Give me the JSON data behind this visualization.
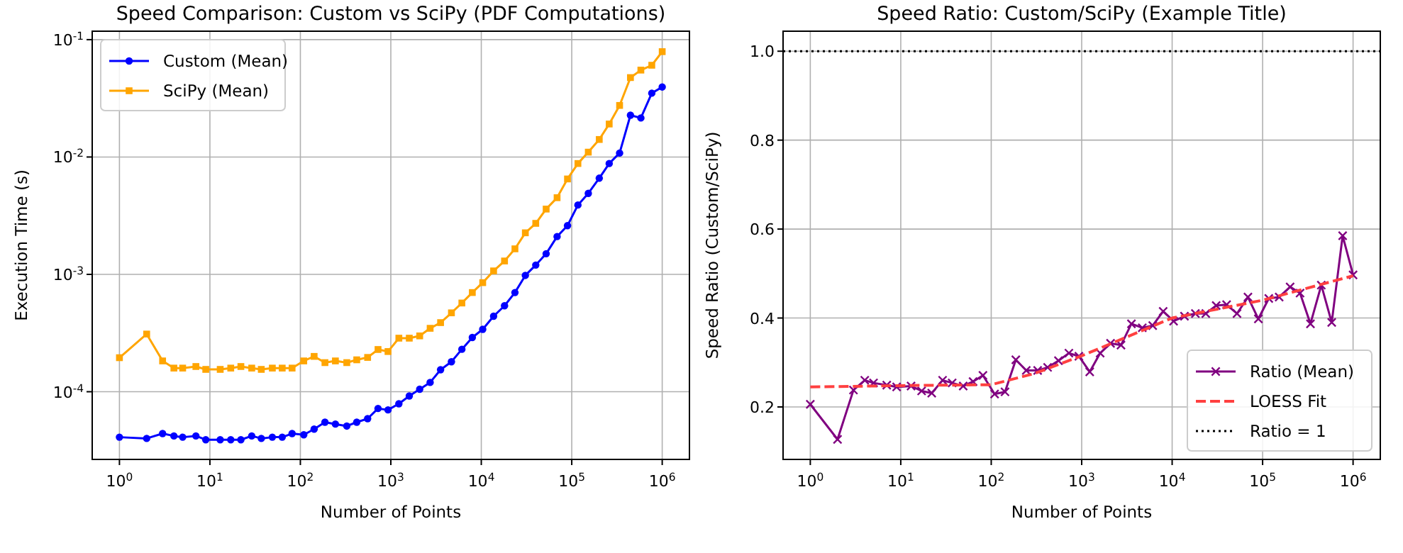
{
  "chart_data": [
    {
      "type": "line",
      "title": "Speed Comparison: Custom vs SciPy (PDF Computations)",
      "xlabel": "Number of Points",
      "ylabel": "Execution Time (s)",
      "log": "xy",
      "grid": true,
      "legend": "top left",
      "x": [
        1,
        2,
        3,
        4,
        5,
        7,
        9,
        13,
        17,
        22,
        29,
        37,
        49,
        63,
        81,
        109,
        142,
        187,
        244,
        326,
        420,
        554,
        722,
        931,
        1227,
        1600,
        2085,
        2720,
        3548,
        4677,
        6100,
        7960,
        10370,
        13680,
        18070,
        23550,
        30690,
        40000,
        52120,
        68860,
        89740,
        117000,
        152400,
        201400,
        259400,
        338000,
        445600,
        580800,
        767000,
        1000000
      ],
      "xlim": [
        0.5,
        2000000
      ],
      "xticks": [
        {
          "value": 1,
          "label": "10$^{0}$"
        },
        {
          "value": 10,
          "label": "10$^{1}$"
        },
        {
          "value": 100,
          "label": "10$^{2}$"
        },
        {
          "value": 1000,
          "label": "10$^{3}$"
        },
        {
          "value": 10000,
          "label": "10$^{4}$"
        },
        {
          "value": 100000,
          "label": "10$^{5}$"
        },
        {
          "value": 1000000,
          "label": "10$^{6}$"
        }
      ],
      "ylim": [
        2.65e-05,
        0.118
      ],
      "yticks": [
        {
          "value": 0.0001,
          "label": "10$^{-4}$"
        },
        {
          "value": 0.001,
          "label": "10$^{-3}$"
        },
        {
          "value": 0.01,
          "label": "10$^{-2}$"
        },
        {
          "value": 0.1,
          "label": "10$^{-1}$"
        }
      ],
      "series": [
        {
          "name": "Custom (Mean)",
          "color": "#0000ff",
          "marker": "circle",
          "values": [
            4.1e-05,
            4e-05,
            4.4e-05,
            4.2e-05,
            4.1e-05,
            4.2e-05,
            3.9e-05,
            3.9e-05,
            3.9e-05,
            3.9e-05,
            4.2e-05,
            4e-05,
            4.1e-05,
            4.1e-05,
            4.4e-05,
            4.3e-05,
            4.8e-05,
            5.5e-05,
            5.3e-05,
            5.1e-05,
            5.5e-05,
            5.9e-05,
            7.2e-05,
            7e-05,
            7.9e-05,
            9.2e-05,
            0.000105,
            0.00012,
            0.000154,
            0.00018,
            0.00023,
            0.00029,
            0.00034,
            0.00044,
            0.00054,
            0.0007,
            0.00098,
            0.0012,
            0.0015,
            0.0021,
            0.0026,
            0.0039,
            0.0049,
            0.0066,
            0.0088,
            0.0108,
            0.0227,
            0.0215,
            0.035,
            0.0395
          ]
        },
        {
          "name": "SciPy (Mean)",
          "color": "#ffa500",
          "marker": "square",
          "values": [
            0.000195,
            0.00031,
            0.000183,
            0.000159,
            0.000159,
            0.000164,
            0.000155,
            0.000155,
            0.000159,
            0.000164,
            0.000159,
            0.000155,
            0.000159,
            0.000159,
            0.000159,
            0.000183,
            0.0002,
            0.000177,
            0.000183,
            0.000177,
            0.000187,
            0.000196,
            0.000229,
            0.00022,
            0.000286,
            0.000286,
            0.000299,
            0.000347,
            0.000388,
            0.00047,
            0.00057,
            0.0007,
            0.00085,
            0.00107,
            0.0013,
            0.00165,
            0.00226,
            0.00272,
            0.0036,
            0.0045,
            0.0065,
            0.0088,
            0.011,
            0.0141,
            0.0191,
            0.0275,
            0.0475,
            0.055,
            0.0605,
            0.079
          ]
        }
      ]
    },
    {
      "type": "line",
      "title": "Speed Ratio: Custom/SciPy (Example Title)",
      "xlabel": "Number of Points",
      "ylabel": "Speed Ratio (Custom/SciPy)",
      "log": "x",
      "grid": true,
      "legend": "bottom right",
      "x": [
        1,
        2,
        3,
        4,
        5,
        7,
        9,
        13,
        17,
        22,
        29,
        37,
        49,
        63,
        81,
        109,
        142,
        187,
        244,
        326,
        420,
        554,
        722,
        931,
        1227,
        1600,
        2085,
        2720,
        3548,
        4677,
        6100,
        7960,
        10370,
        13680,
        18070,
        23550,
        30690,
        40000,
        52120,
        68860,
        89740,
        117000,
        152400,
        201400,
        259400,
        338000,
        445600,
        580800,
        767000,
        1000000
      ],
      "xlim": [
        0.5,
        2000000
      ],
      "xticks": [
        {
          "value": 1,
          "label": "10$^{0}$"
        },
        {
          "value": 10,
          "label": "10$^{1}$"
        },
        {
          "value": 100,
          "label": "10$^{2}$"
        },
        {
          "value": 1000,
          "label": "10$^{3}$"
        },
        {
          "value": 10000,
          "label": "10$^{4}$"
        },
        {
          "value": 100000,
          "label": "10$^{5}$"
        },
        {
          "value": 1000000,
          "label": "10$^{6}$"
        }
      ],
      "ylim": [
        0.082,
        1.045
      ],
      "yticks": [
        {
          "value": 0.2,
          "label": "0.2"
        },
        {
          "value": 0.4,
          "label": "0.4"
        },
        {
          "value": 0.6,
          "label": "0.6"
        },
        {
          "value": 0.8,
          "label": "0.8"
        },
        {
          "value": 1,
          "label": "1.0"
        }
      ],
      "series": [
        {
          "name": "Ratio (Mean)",
          "color": "#800080",
          "marker": "cross",
          "values": [
            0.206,
            0.127,
            0.238,
            0.26,
            0.254,
            0.249,
            0.245,
            0.247,
            0.236,
            0.231,
            0.26,
            0.254,
            0.247,
            0.257,
            0.271,
            0.229,
            0.234,
            0.306,
            0.282,
            0.282,
            0.289,
            0.304,
            0.321,
            0.314,
            0.279,
            0.321,
            0.343,
            0.339,
            0.387,
            0.378,
            0.383,
            0.415,
            0.393,
            0.404,
            0.41,
            0.41,
            0.428,
            0.43,
            0.41,
            0.447,
            0.398,
            0.444,
            0.447,
            0.47,
            0.456,
            0.387,
            0.474,
            0.39,
            0.585,
            0.497
          ]
        },
        {
          "name": "LOESS Fit",
          "color": "#ff4040",
          "marker": "none",
          "line_style": "dashed",
          "x": [
            1,
            10,
            100,
            300,
            1000,
            10000,
            100000,
            1000000
          ],
          "values": [
            0.245,
            0.248,
            0.25,
            0.275,
            0.315,
            0.4,
            0.44,
            0.495
          ]
        }
      ],
      "ref_lines": [
        {
          "axis": "y",
          "value": 1,
          "label": "Ratio = 1",
          "color": "#000000",
          "line_style": "dotted"
        }
      ]
    }
  ]
}
